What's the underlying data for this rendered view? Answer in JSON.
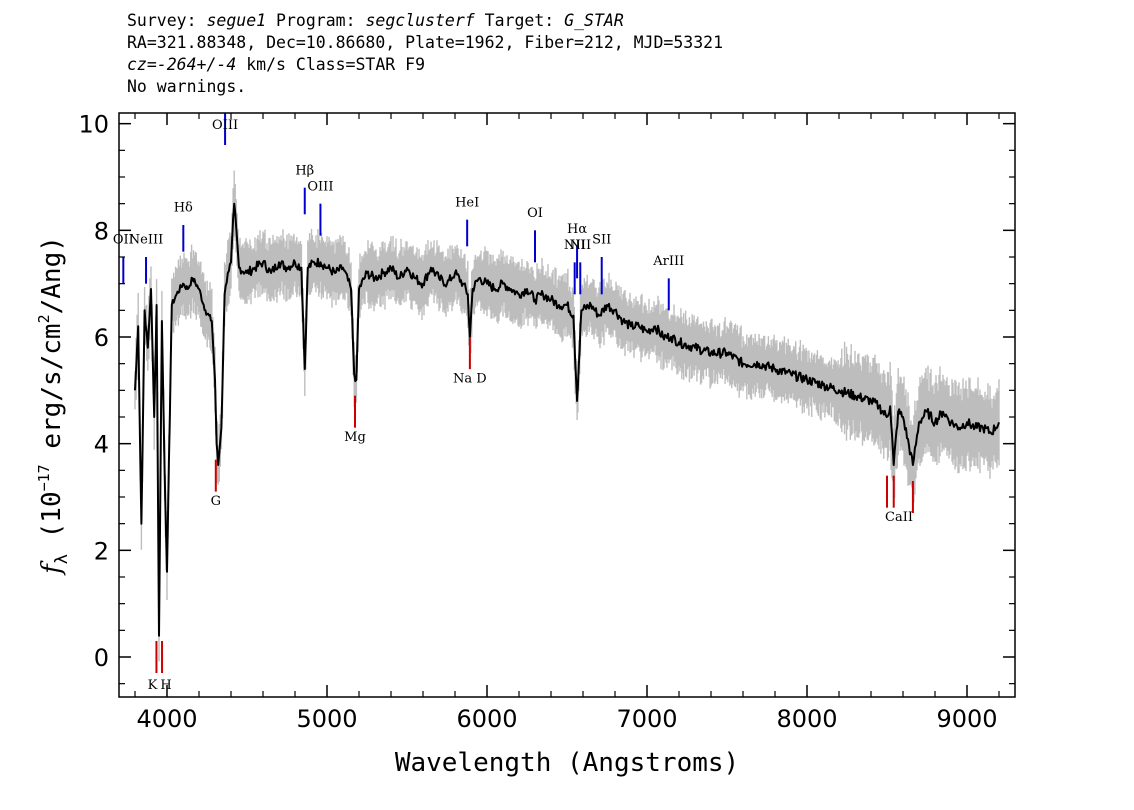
{
  "header": {
    "survey_label": "Survey:",
    "survey": "segue1",
    "program_label": "Program:",
    "program": "segclusterf",
    "target_label": "Target:",
    "target": "G_STAR",
    "line2": "RA=321.88348, Dec=10.86680, Plate=1962, Fiber=212, MJD=53321",
    "cz": "cz=-264+/-4",
    "line3_rest": " km/s Class=STAR F9",
    "line4": "No warnings."
  },
  "chart_data": {
    "type": "line",
    "title": "",
    "xlabel": "Wavelength (Angstroms)",
    "ylabel": "fλ (10^-17 erg/s/cm^2/Ang)",
    "xlim": [
      3700,
      9300
    ],
    "ylim": [
      -0.75,
      10.2
    ],
    "xticks": [
      4000,
      5000,
      6000,
      7000,
      8000,
      9000
    ],
    "yticks": [
      0,
      2,
      4,
      6,
      8,
      10
    ],
    "grid": false,
    "series": [
      {
        "color": "#000000",
        "role": "flux",
        "x": [
          3800,
          3820,
          3840,
          3860,
          3880,
          3900,
          3920,
          3935,
          3950,
          3968,
          3985,
          4000,
          4030,
          4060,
          4100,
          4130,
          4160,
          4200,
          4240,
          4280,
          4300,
          4310,
          4320,
          4340,
          4360,
          4380,
          4400,
          4420,
          4450,
          4500,
          4550,
          4600,
          4650,
          4700,
          4750,
          4800,
          4840,
          4861,
          4880,
          4920,
          4960,
          5000,
          5050,
          5100,
          5150,
          5170,
          5184,
          5200,
          5250,
          5300,
          5350,
          5400,
          5450,
          5500,
          5550,
          5600,
          5650,
          5700,
          5750,
          5800,
          5850,
          5880,
          5893,
          5910,
          5950,
          6000,
          6050,
          6100,
          6150,
          6200,
          6250,
          6300,
          6350,
          6400,
          6450,
          6500,
          6540,
          6563,
          6590,
          6650,
          6700,
          6750,
          6800,
          6850,
          6900,
          6950,
          7000,
          7050,
          7100,
          7150,
          7200,
          7300,
          7400,
          7500,
          7600,
          7700,
          7800,
          7900,
          8000,
          8100,
          8200,
          8300,
          8400,
          8450,
          8498,
          8520,
          8542,
          8570,
          8600,
          8662,
          8700,
          8750,
          8800,
          8850,
          8900,
          8950,
          9000,
          9050,
          9100,
          9150,
          9200
        ],
        "values": [
          5.0,
          6.2,
          2.5,
          6.5,
          5.8,
          6.9,
          4.5,
          6.6,
          0.4,
          6.3,
          3.5,
          1.6,
          6.6,
          6.8,
          7.0,
          6.9,
          7.1,
          6.9,
          6.5,
          6.3,
          5.2,
          4.0,
          3.6,
          4.3,
          6.8,
          7.2,
          7.4,
          8.5,
          7.3,
          7.2,
          7.3,
          7.4,
          7.2,
          7.4,
          7.3,
          7.4,
          7.3,
          5.4,
          7.3,
          7.4,
          7.4,
          7.3,
          7.2,
          7.3,
          6.9,
          5.3,
          5.2,
          6.9,
          7.2,
          7.1,
          7.2,
          7.3,
          7.1,
          7.3,
          7.1,
          7.0,
          7.3,
          7.1,
          7.0,
          7.2,
          7.0,
          6.8,
          6.0,
          6.9,
          7.1,
          7.0,
          6.9,
          7.0,
          6.9,
          6.8,
          6.9,
          6.7,
          6.8,
          6.7,
          6.6,
          6.6,
          6.4,
          4.8,
          6.5,
          6.6,
          6.4,
          6.6,
          6.5,
          6.3,
          6.2,
          6.2,
          6.1,
          6.2,
          6.0,
          6.0,
          5.9,
          5.8,
          5.7,
          5.7,
          5.5,
          5.5,
          5.4,
          5.3,
          5.2,
          5.1,
          5.0,
          4.9,
          4.8,
          4.7,
          4.5,
          4.7,
          3.6,
          4.6,
          4.5,
          3.6,
          4.4,
          4.6,
          4.4,
          4.6,
          4.4,
          4.3,
          4.4,
          4.3,
          4.3,
          4.2,
          4.4
        ]
      },
      {
        "color": "#bdbdbd",
        "role": "error envelope",
        "band": 0.35
      }
    ],
    "emission_lines": [
      {
        "label": "OII",
        "x": 3727,
        "y": [
          7.5,
          7.0
        ],
        "label_y": 7.75,
        "color": "#0000cc"
      },
      {
        "label": "NeIII",
        "x": 3869,
        "y": [
          7.5,
          7.0
        ],
        "label_y": 7.75,
        "color": "#0000cc"
      },
      {
        "label": "Hδ",
        "x": 4102,
        "y": [
          8.1,
          7.6
        ],
        "label_y": 8.35,
        "color": "#0000cc"
      },
      {
        "label": "OIII",
        "x": 4363,
        "y": [
          10.2,
          9.6
        ],
        "label_y": 9.9,
        "color": "#0000cc"
      },
      {
        "label": "Hβ",
        "x": 4861,
        "y": [
          8.8,
          8.3
        ],
        "label_y": 9.05,
        "color": "#0000cc"
      },
      {
        "label": "OIII",
        "x": 4959,
        "y": [
          8.5,
          7.9
        ],
        "label_y": 8.75,
        "color": "#0000cc"
      },
      {
        "label": "HeI",
        "x": 5876,
        "y": [
          8.2,
          7.7
        ],
        "label_y": 8.45,
        "color": "#0000cc"
      },
      {
        "label": "OI",
        "x": 6300,
        "y": [
          8.0,
          7.4
        ],
        "label_y": 8.25,
        "color": "#0000cc"
      },
      {
        "label": "NII",
        "x": 6548,
        "y": [
          7.4,
          6.8
        ],
        "label_y": 7.65,
        "color": "#0000cc"
      },
      {
        "label": "Hα",
        "x": 6563,
        "y": [
          7.7,
          7.1
        ],
        "label_y": 7.95,
        "color": "#0000cc"
      },
      {
        "label": "NII",
        "x": 6583,
        "y": [
          7.4,
          6.8
        ],
        "label_y": 7.65,
        "color": "#0000cc"
      },
      {
        "label": "SII",
        "x": 6717,
        "y": [
          7.5,
          6.8
        ],
        "label_y": 7.75,
        "color": "#0000cc"
      },
      {
        "label": "ArIII",
        "x": 7136,
        "y": [
          7.1,
          6.5
        ],
        "label_y": 7.35,
        "color": "#0000cc"
      }
    ],
    "absorption_lines": [
      {
        "label": "K",
        "x": 3934,
        "y": [
          0.3,
          -0.3
        ],
        "label_y": -0.6,
        "color": "#cc0000"
      },
      {
        "label": "H",
        "x": 3969,
        "y": [
          0.3,
          -0.3
        ],
        "label_y": -0.6,
        "color": "#cc0000"
      },
      {
        "label": "G",
        "x": 4305,
        "y": [
          3.7,
          3.1
        ],
        "label_y": 2.85,
        "color": "#cc0000"
      },
      {
        "label": "Mg",
        "x": 5175,
        "y": [
          4.9,
          4.3
        ],
        "label_y": 4.05,
        "color": "#cc0000"
      },
      {
        "label": "Na D",
        "x": 5893,
        "y": [
          6.0,
          5.4
        ],
        "label_y": 5.15,
        "color": "#cc0000"
      },
      {
        "label": "CaII",
        "x": 8500,
        "y": [
          3.4,
          2.8
        ],
        "label_y": 2.55,
        "color": "#cc0000"
      },
      {
        "label": "CaII",
        "x": 8542,
        "y": [
          3.4,
          2.8
        ],
        "label_y": 2.55,
        "color": "#cc0000"
      },
      {
        "label": "CaII",
        "x": 8662,
        "y": [
          3.3,
          2.7
        ],
        "label_y": 2.55,
        "color": "#cc0000"
      }
    ]
  }
}
